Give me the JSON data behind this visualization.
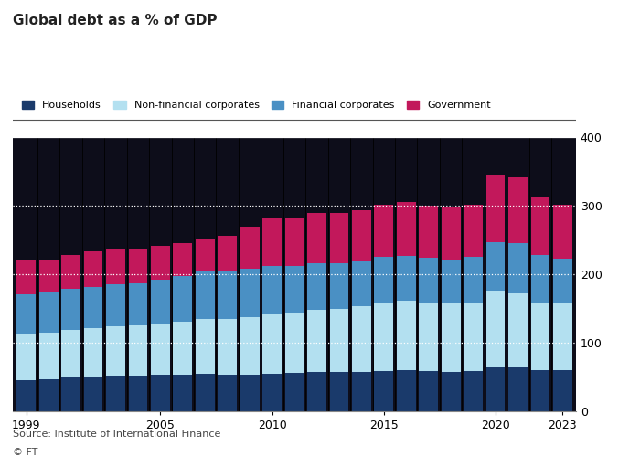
{
  "title": "Global debt as a % of GDP",
  "source": "Source: Institute of International Finance",
  "ft_credit": "© FT",
  "years": [
    1999,
    2000,
    2001,
    2002,
    2003,
    2004,
    2005,
    2006,
    2007,
    2008,
    2009,
    2010,
    2011,
    2012,
    2013,
    2014,
    2015,
    2016,
    2017,
    2018,
    2019,
    2020,
    2021,
    2022,
    2023
  ],
  "households": [
    45,
    47,
    49,
    50,
    52,
    52,
    53,
    54,
    55,
    53,
    54,
    55,
    56,
    57,
    57,
    58,
    59,
    60,
    59,
    58,
    59,
    65,
    64,
    60,
    60
  ],
  "non_financial_corp": [
    68,
    68,
    70,
    71,
    72,
    73,
    75,
    77,
    80,
    82,
    84,
    87,
    88,
    91,
    93,
    95,
    99,
    101,
    100,
    99,
    100,
    111,
    108,
    99,
    97
  ],
  "financial_corp": [
    58,
    58,
    60,
    61,
    61,
    62,
    64,
    66,
    70,
    70,
    70,
    70,
    68,
    68,
    66,
    66,
    67,
    66,
    65,
    65,
    66,
    71,
    74,
    69,
    66
  ],
  "government": [
    49,
    47,
    49,
    51,
    52,
    51,
    50,
    48,
    46,
    51,
    62,
    70,
    71,
    74,
    74,
    75,
    77,
    78,
    76,
    75,
    77,
    98,
    96,
    84,
    79
  ],
  "colors": {
    "households": "#1a3a6b",
    "non_financial_corp": "#b3e0f0",
    "financial_corp": "#4a90c4",
    "government": "#c2185b"
  },
  "ylim": [
    0,
    400
  ],
  "yticks": [
    0,
    100,
    200,
    300,
    400
  ],
  "chart_bg": "#1a1a2e",
  "fig_bg": "#ffffff",
  "grid_color": "#ffffff",
  "legend_labels": [
    "Households",
    "Non-financial corporates",
    "Financial corporates",
    "Government"
  ],
  "xtick_labels": [
    "1999",
    "2005",
    "2010",
    "2015",
    "2020",
    "2023"
  ],
  "xtick_positions": [
    1999,
    2005,
    2010,
    2015,
    2020,
    2023
  ]
}
